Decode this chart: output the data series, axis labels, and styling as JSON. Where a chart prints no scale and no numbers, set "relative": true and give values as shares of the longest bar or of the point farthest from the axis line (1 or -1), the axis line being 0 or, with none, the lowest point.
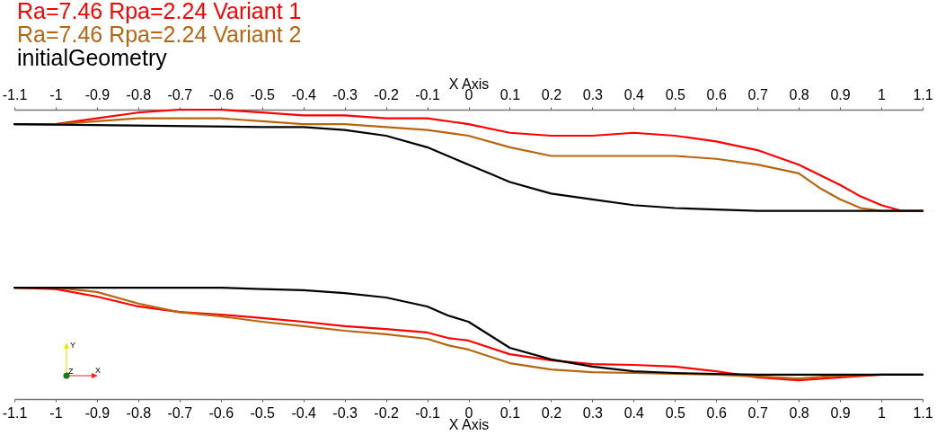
{
  "chart_data": {
    "type": "line",
    "relative": true,
    "xlabel": "X Axis",
    "x2label": "X Axis",
    "xlim": [
      -1.1,
      1.1
    ],
    "xticks": [
      -1.1,
      -1,
      -0.9,
      -0.8,
      -0.7,
      -0.6,
      -0.5,
      -0.4,
      -0.3,
      -0.2,
      -0.1,
      0,
      0.1,
      0.2,
      0.3,
      0.4,
      0.5,
      0.6,
      0.7,
      0.8,
      0.9,
      1,
      1.1
    ],
    "x2lim": [
      -1.1,
      1.1
    ],
    "x2ticks": [
      -1.1,
      -1,
      -0.9,
      -0.8,
      -0.7,
      -0.6,
      -0.5,
      -0.4,
      -0.3,
      -0.2,
      -0.1,
      0,
      0.1,
      0.2,
      0.3,
      0.4,
      0.5,
      0.6,
      0.7,
      0.8,
      0.9,
      1,
      1.1
    ],
    "legend": "top left",
    "grid": false,
    "marker": "none",
    "line_style": "solid",
    "annotations": [
      "Y",
      "Z",
      "X"
    ],
    "series": [
      {
        "name": "Ra=7.46 Rpa=2.24 Variant 1",
        "color": "#ff0000",
        "x": [
          -1.1,
          -1,
          -0.9,
          -0.8,
          -0.7,
          -0.6,
          -0.5,
          -0.4,
          -0.3,
          -0.2,
          -0.1,
          0,
          0.1,
          0.2,
          0.3,
          0.4,
          0.5,
          0.6,
          0.7,
          0.8,
          0.9,
          0.95,
          1,
          1.05,
          1.1
        ],
        "values": [
          0.95,
          0.95,
          0.97,
          0.99,
          1.0,
          1.0,
          0.99,
          0.98,
          0.98,
          0.97,
          0.97,
          0.95,
          0.92,
          0.91,
          0.91,
          0.92,
          0.91,
          0.89,
          0.86,
          0.81,
          0.74,
          0.7,
          0.67,
          0.65,
          0.65
        ]
      },
      {
        "name": "Ra=7.46 Rpa=2.24 Variant 2",
        "color": "#b8650f",
        "x": [
          -1.1,
          -1,
          -0.9,
          -0.8,
          -0.7,
          -0.6,
          -0.5,
          -0.4,
          -0.3,
          -0.2,
          -0.1,
          0,
          0.1,
          0.2,
          0.3,
          0.4,
          0.5,
          0.6,
          0.7,
          0.8,
          0.85,
          0.9,
          0.95,
          1,
          1.1
        ],
        "values": [
          0.95,
          0.95,
          0.96,
          0.97,
          0.97,
          0.97,
          0.96,
          0.95,
          0.95,
          0.94,
          0.93,
          0.91,
          0.87,
          0.84,
          0.84,
          0.84,
          0.84,
          0.83,
          0.81,
          0.78,
          0.73,
          0.69,
          0.66,
          0.65,
          0.65
        ]
      },
      {
        "name": "initialGeometry",
        "color": "#000000",
        "x": [
          -1.1,
          -0.5,
          -0.4,
          -0.3,
          -0.2,
          -0.1,
          -0.05,
          0,
          0.05,
          0.1,
          0.2,
          0.3,
          0.4,
          0.5,
          0.6,
          0.7,
          1.1
        ],
        "values": [
          0.95,
          0.94,
          0.94,
          0.93,
          0.91,
          0.87,
          0.84,
          0.81,
          0.78,
          0.75,
          0.71,
          0.69,
          0.67,
          0.66,
          0.655,
          0.65,
          0.65
        ]
      },
      {
        "color": "#ff0000",
        "x": [
          -1.1,
          -1,
          -0.9,
          -0.8,
          -0.7,
          -0.6,
          -0.5,
          -0.4,
          -0.3,
          -0.2,
          -0.1,
          -0.05,
          0,
          0.1,
          0.2,
          0.3,
          0.4,
          0.5,
          0.6,
          0.7,
          0.8,
          0.9,
          1,
          1.1
        ],
        "values": [
          0.385,
          0.38,
          0.354,
          0.32,
          0.301,
          0.292,
          0.28,
          0.267,
          0.252,
          0.242,
          0.23,
          0.211,
          0.202,
          0.155,
          0.134,
          0.121,
          0.118,
          0.112,
          0.096,
          0.075,
          0.065,
          0.075,
          0.084,
          0.084
        ]
      },
      {
        "color": "#b8650f",
        "x": [
          -1.1,
          -1,
          -0.9,
          -0.8,
          -0.7,
          -0.6,
          -0.5,
          -0.4,
          -0.3,
          -0.2,
          -0.1,
          -0.05,
          0,
          0.1,
          0.2,
          0.3,
          0.4,
          0.5,
          0.6,
          0.7,
          0.8,
          0.9,
          1,
          1.1
        ],
        "values": [
          0.385,
          0.385,
          0.37,
          0.33,
          0.3,
          0.286,
          0.267,
          0.252,
          0.236,
          0.224,
          0.208,
          0.186,
          0.171,
          0.124,
          0.102,
          0.093,
          0.09,
          0.087,
          0.084,
          0.078,
          0.071,
          0.081,
          0.084,
          0.084
        ]
      },
      {
        "color": "#000000",
        "x": [
          -1.1,
          -0.6,
          -0.5,
          -0.4,
          -0.3,
          -0.2,
          -0.1,
          -0.05,
          0,
          0.1,
          0.2,
          0.3,
          0.4,
          0.5,
          0.6,
          0.7,
          1.1
        ],
        "values": [
          0.385,
          0.385,
          0.38,
          0.376,
          0.366,
          0.351,
          0.32,
          0.289,
          0.267,
          0.177,
          0.137,
          0.112,
          0.096,
          0.09,
          0.087,
          0.084,
          0.084
        ]
      }
    ]
  }
}
